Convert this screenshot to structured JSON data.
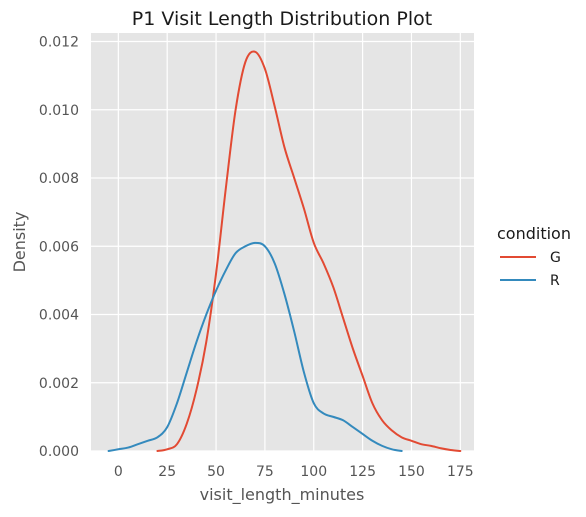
{
  "chart_data": {
    "type": "line",
    "title": "P1 Visit Length Distribution Plot",
    "xlabel": "visit_length_minutes",
    "ylabel": "Density",
    "xlim": [
      -14,
      182
    ],
    "ylim": [
      0,
      0.01225
    ],
    "xticks": [
      0,
      25,
      50,
      75,
      100,
      125,
      150,
      175
    ],
    "yticks": [
      0.0,
      0.002,
      0.004,
      0.006,
      0.008,
      0.01,
      0.012
    ],
    "ytick_labels": [
      "0.000",
      "0.002",
      "0.004",
      "0.006",
      "0.008",
      "0.010",
      "0.012"
    ],
    "grid": true,
    "legend": {
      "title": "condition",
      "placement": "right"
    },
    "series": [
      {
        "name": "G",
        "color": "#e24a33",
        "x": [
          20,
          25,
          30,
          35,
          40,
          45,
          50,
          55,
          60,
          65,
          70,
          75,
          80,
          85,
          90,
          95,
          100,
          105,
          110,
          115,
          120,
          125,
          130,
          135,
          140,
          145,
          150,
          155,
          160,
          165,
          170,
          175
        ],
        "y": [
          0.0,
          5e-05,
          0.0002,
          0.0008,
          0.0018,
          0.0032,
          0.0052,
          0.0077,
          0.01,
          0.0114,
          0.0117,
          0.0112,
          0.0101,
          0.0089,
          0.008,
          0.0071,
          0.0061,
          0.0055,
          0.0048,
          0.0039,
          0.003,
          0.0022,
          0.0014,
          0.0009,
          0.0006,
          0.0004,
          0.0003,
          0.0002,
          0.00015,
          8e-05,
          3e-05,
          0.0
        ]
      },
      {
        "name": "R",
        "color": "#348abd",
        "x": [
          -5,
          0,
          5,
          10,
          15,
          20,
          25,
          30,
          35,
          40,
          45,
          50,
          55,
          60,
          65,
          70,
          75,
          80,
          85,
          90,
          95,
          100,
          105,
          110,
          115,
          120,
          125,
          130,
          135,
          140,
          145
        ],
        "y": [
          0.0,
          5e-05,
          0.0001,
          0.0002,
          0.0003,
          0.0004,
          0.0007,
          0.0014,
          0.0023,
          0.0032,
          0.004,
          0.0047,
          0.0053,
          0.0058,
          0.006,
          0.0061,
          0.006,
          0.0055,
          0.0046,
          0.0035,
          0.0023,
          0.0014,
          0.0011,
          0.001,
          0.0009,
          0.0007,
          0.0005,
          0.0003,
          0.00015,
          5e-05,
          0.0
        ]
      }
    ]
  }
}
